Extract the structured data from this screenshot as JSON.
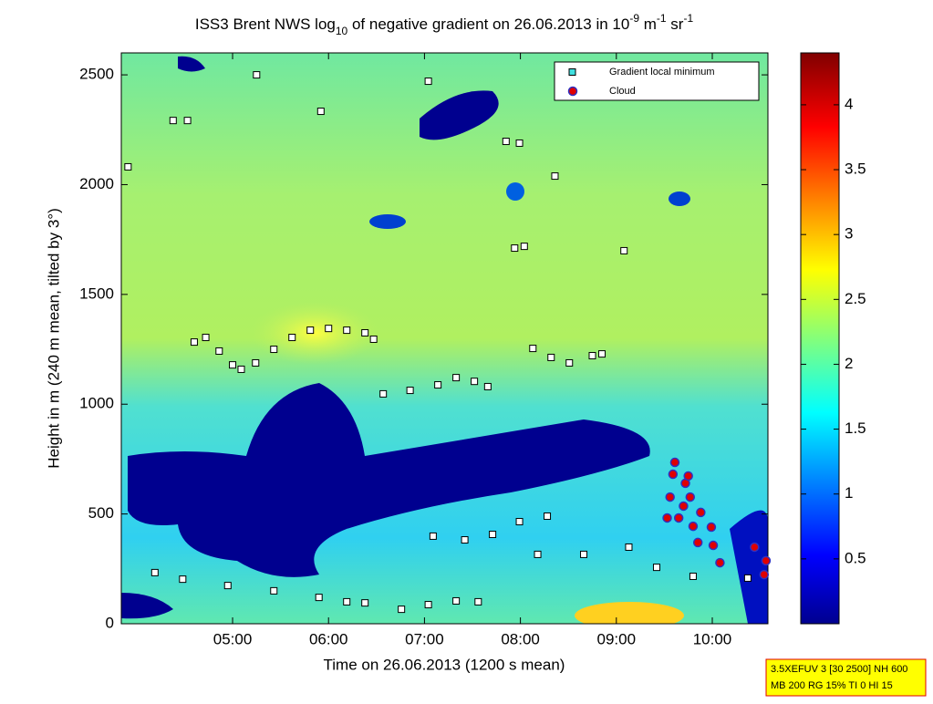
{
  "chart_data": {
    "type": "scatter",
    "title_parts": [
      "ISS3 Brent NWS log",
      "10",
      " of negative gradient on 26.06.2013 in 10",
      "-9",
      " m",
      "-1",
      " sr",
      "-1"
    ],
    "xlabel": "Time on 26.06.2013 (1200 s mean)",
    "ylabel": "Height in m (240 m mean, tilted by 3°)",
    "xlim": [
      3.84,
      10.58
    ],
    "xticks": [
      {
        "value": 5,
        "label": "05:00"
      },
      {
        "value": 6,
        "label": "06:00"
      },
      {
        "value": 7,
        "label": "07:00"
      },
      {
        "value": 8,
        "label": "08:00"
      },
      {
        "value": 9,
        "label": "09:00"
      },
      {
        "value": 10,
        "label": "10:00"
      }
    ],
    "ylim": [
      0,
      2600
    ],
    "yticks": [
      0,
      500,
      1000,
      1500,
      2000,
      2500
    ],
    "colorbar": {
      "lim": [
        0,
        4.4
      ],
      "ticks": [
        0.5,
        1,
        1.5,
        2,
        2.5,
        3,
        3.5,
        4
      ]
    },
    "legend_position": "upper right",
    "series": [
      {
        "name": "Gradient local minimum",
        "color": "#ffffff",
        "legend_color": "#40e0e0",
        "marker": "square",
        "x": [
          4.6,
          4.72,
          4.86,
          5.0,
          5.09,
          5.24,
          5.43,
          5.62,
          5.81,
          6.0,
          6.19,
          6.38,
          6.47,
          6.57,
          6.85,
          7.14,
          7.33,
          7.52,
          7.66,
          8.13,
          8.32,
          8.51,
          8.75,
          8.85,
          4.19,
          4.48,
          4.95,
          5.43,
          5.9,
          6.19,
          6.38,
          6.76,
          7.04,
          7.33,
          7.56,
          7.09,
          7.42,
          7.71,
          7.99,
          8.28,
          8.18,
          8.66,
          9.13,
          9.42,
          9.8,
          10.37,
          4.38,
          4.53,
          3.91,
          7.85,
          7.99,
          7.94,
          8.04,
          5.25,
          7.04,
          5.92,
          8.36,
          9.08
        ],
        "values": [
          1283,
          1304,
          1242,
          1179,
          1159,
          1188,
          1250,
          1304,
          1337,
          1345,
          1337,
          1325,
          1296,
          1047,
          1063,
          1088,
          1121,
          1104,
          1080,
          1254,
          1213,
          1188,
          1221,
          1229,
          233,
          203,
          174,
          150,
          120,
          100,
          95,
          66,
          87,
          104,
          100,
          399,
          382,
          407,
          465,
          490,
          316,
          316,
          349,
          257,
          216,
          208,
          2292,
          2292,
          2081,
          2197,
          2189,
          1711,
          1719,
          2500,
          2471,
          2334,
          2039,
          1699
        ]
      },
      {
        "name": "Cloud",
        "color": "#e00000",
        "edge": "#3030c0",
        "marker": "circle",
        "x": [
          9.61,
          9.59,
          9.56,
          9.65,
          9.7,
          9.72,
          9.75,
          9.77,
          9.8,
          9.85,
          9.88,
          9.99,
          10.01,
          10.08,
          10.44,
          10.56,
          10.54,
          9.53
        ],
        "values": [
          735,
          681,
          577,
          482,
          536,
          640,
          673,
          577,
          444,
          370,
          507,
          440,
          357,
          278,
          349,
          287,
          224,
          482
        ]
      }
    ],
    "annotation": [
      "3.5XEFUV 3 [30 2500] NH 600",
      "MB 200 RG 15% TI 0 HI 15"
    ]
  }
}
